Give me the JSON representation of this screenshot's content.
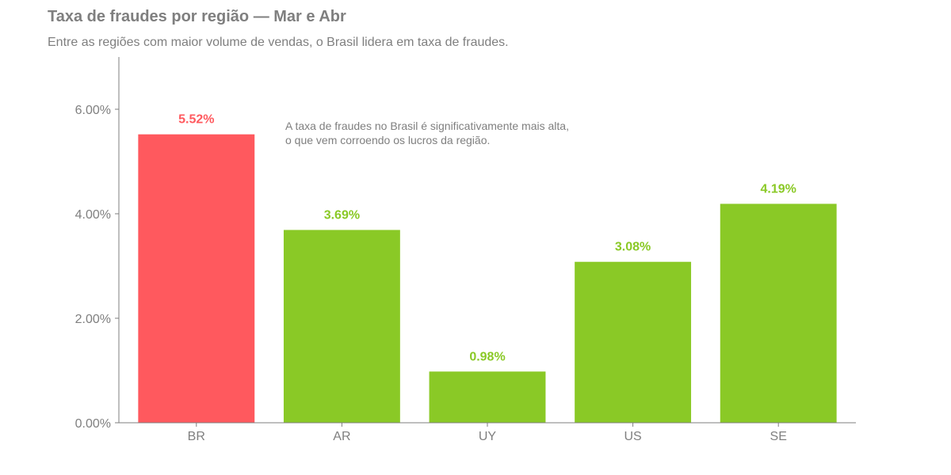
{
  "chart_data": {
    "type": "bar",
    "title": "Taxa de fraudes por região — Mar e Abr",
    "subtitle": "Entre as regiões com maior volume de vendas, o Brasil lidera em taxa de fraudes.",
    "xlabel": "",
    "ylabel": "",
    "categories": [
      "BR",
      "AR",
      "UY",
      "US",
      "SE"
    ],
    "values": [
      5.52,
      3.69,
      0.98,
      3.08,
      4.19
    ],
    "data_labels": [
      "5.52%",
      "3.69%",
      "0.98%",
      "3.08%",
      "4.19%"
    ],
    "ylim": [
      0,
      7
    ],
    "y_ticks": [
      0,
      2,
      4,
      6
    ],
    "y_tick_labels": [
      "0.00%",
      "2.00%",
      "4.00%",
      "6.00%"
    ],
    "grid": false,
    "legend": "none",
    "colors": {
      "highlight": "#ff595e",
      "default": "#8ac926",
      "text": "#7f7f7f"
    },
    "highlight_category": "BR",
    "annotation": {
      "lines": [
        "A taxa de fraudes no Brasil é significativamente mais alta,",
        "o que vem corroendo os lucros da região."
      ]
    }
  }
}
